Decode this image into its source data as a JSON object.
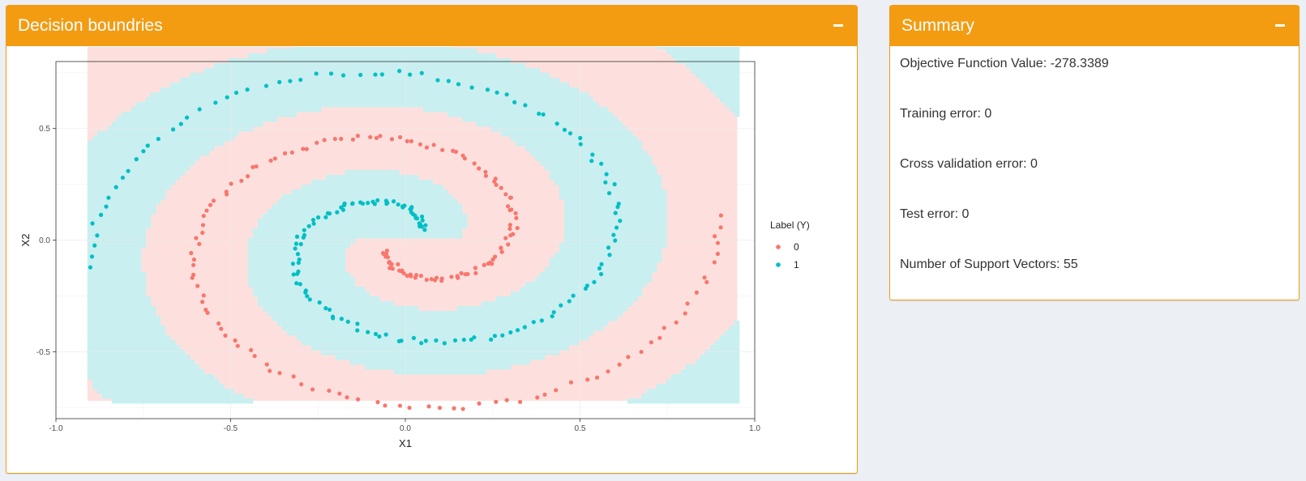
{
  "panels": {
    "plot": {
      "title": "Decision boundries"
    },
    "summary": {
      "title": "Summary",
      "lines": [
        "Objective Function Value: -278.3389",
        "Training error: 0",
        "Cross validation error: 0",
        "Test error: 0",
        "Number of Support Vectors: 55"
      ]
    }
  },
  "colors": {
    "header": "#f39c12",
    "class0": "#f8766d",
    "class1": "#00bfc4",
    "region0": "#fde0dd",
    "region1": "#c9eff0"
  },
  "chart_data": {
    "type": "scatter",
    "xlabel": "X1",
    "ylabel": "X2",
    "xlim": [
      -1.0,
      1.0
    ],
    "ylim": [
      -0.8,
      0.8
    ],
    "x_ticks": [
      "-1.0",
      "-0.5",
      "0.0",
      "0.5",
      "1.0"
    ],
    "y_ticks": [
      "-0.5",
      "0.0",
      "0.5"
    ],
    "grid": true,
    "legend": {
      "title": "Label (Y)",
      "placement": "right",
      "entries": [
        "0",
        "1"
      ]
    },
    "series": [
      {
        "name": "0",
        "spiral": {
          "turns_start": 0.12,
          "turns_end": 1.52,
          "points": 175,
          "phase": 3.14159
        }
      },
      {
        "name": "1",
        "spiral": {
          "turns_start": 0.12,
          "turns_end": 1.52,
          "points": 175,
          "phase": 0
        }
      }
    ],
    "decision_region": {
      "x_range": [
        -0.91,
        0.95
      ],
      "y_range": [
        -0.72,
        0.88
      ]
    }
  }
}
